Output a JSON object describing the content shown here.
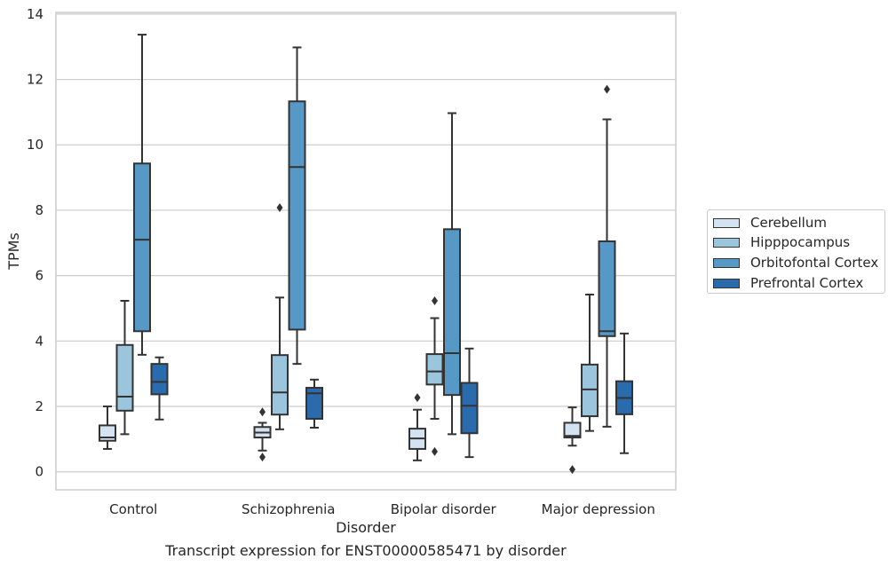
{
  "caption": "Transcript expression for ENST00000585471 by disorder",
  "chart_data": {
    "type": "box",
    "xlabel": "Disorder",
    "ylabel": "TPMs",
    "ylim": [
      -0.55,
      14.05
    ],
    "yticks": [
      0,
      2,
      4,
      6,
      8,
      10,
      12,
      14
    ],
    "grid": true,
    "legend_position": "right",
    "categories": [
      "Control",
      "Schizophrenia",
      "Bipolar disorder",
      "Major depression"
    ],
    "series": [
      {
        "name": "Cerebellum",
        "color": "#d4e3f1",
        "boxes": [
          {
            "whisker_low": 0.7,
            "q1": 0.95,
            "median": 1.05,
            "q3": 1.42,
            "whisker_high": 2.0,
            "outliers": []
          },
          {
            "whisker_low": 0.65,
            "q1": 1.05,
            "median": 1.2,
            "q3": 1.37,
            "whisker_high": 1.5,
            "outliers": [
              0.45,
              1.83
            ]
          },
          {
            "whisker_low": 0.35,
            "q1": 0.7,
            "median": 1.02,
            "q3": 1.32,
            "whisker_high": 1.9,
            "outliers": [
              2.27
            ]
          },
          {
            "whisker_low": 0.8,
            "q1": 1.05,
            "median": 1.1,
            "q3": 1.5,
            "whisker_high": 1.97,
            "outliers": [
              0.07
            ]
          }
        ]
      },
      {
        "name": "Hipppocampus",
        "color": "#9ac5dd",
        "boxes": [
          {
            "whisker_low": 1.15,
            "q1": 1.87,
            "median": 2.3,
            "q3": 3.88,
            "whisker_high": 5.23,
            "outliers": []
          },
          {
            "whisker_low": 1.3,
            "q1": 1.75,
            "median": 2.43,
            "q3": 3.57,
            "whisker_high": 5.33,
            "outliers": [
              8.08
            ]
          },
          {
            "whisker_low": 1.62,
            "q1": 2.67,
            "median": 3.07,
            "q3": 3.6,
            "whisker_high": 4.7,
            "outliers": [
              0.62,
              5.23
            ]
          },
          {
            "whisker_low": 1.25,
            "q1": 1.7,
            "median": 2.52,
            "q3": 3.28,
            "whisker_high": 5.42,
            "outliers": []
          }
        ]
      },
      {
        "name": "Orbitofontal Cortex",
        "color": "#5698c6",
        "boxes": [
          {
            "whisker_low": 3.58,
            "q1": 4.3,
            "median": 7.1,
            "q3": 9.43,
            "whisker_high": 13.37,
            "outliers": []
          },
          {
            "whisker_low": 3.3,
            "q1": 4.35,
            "median": 9.32,
            "q3": 11.33,
            "whisker_high": 12.98,
            "outliers": []
          },
          {
            "whisker_low": 1.15,
            "q1": 2.35,
            "median": 3.63,
            "q3": 7.42,
            "whisker_high": 10.97,
            "outliers": []
          },
          {
            "whisker_low": 1.38,
            "q1": 4.15,
            "median": 4.3,
            "q3": 7.05,
            "whisker_high": 10.78,
            "outliers": [
              11.7
            ]
          }
        ]
      },
      {
        "name": "Prefrontal Cortex",
        "color": "#2a6bad",
        "boxes": [
          {
            "whisker_low": 1.6,
            "q1": 2.37,
            "median": 2.75,
            "q3": 3.3,
            "whisker_high": 3.5,
            "outliers": []
          },
          {
            "whisker_low": 1.35,
            "q1": 1.62,
            "median": 2.4,
            "q3": 2.57,
            "whisker_high": 2.82,
            "outliers": []
          },
          {
            "whisker_low": 0.45,
            "q1": 1.18,
            "median": 2.02,
            "q3": 2.72,
            "whisker_high": 3.77,
            "outliers": []
          },
          {
            "whisker_low": 0.57,
            "q1": 1.76,
            "median": 2.26,
            "q3": 2.77,
            "whisker_high": 4.23,
            "outliers": []
          }
        ]
      }
    ]
  }
}
